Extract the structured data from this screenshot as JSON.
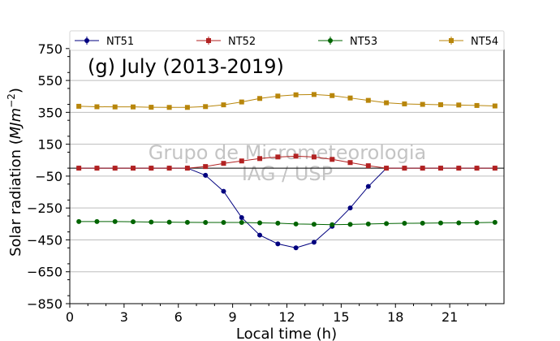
{
  "chart_data": {
    "type": "line",
    "annotation": "(g) July (2013-2019)",
    "watermark": [
      "Grupo de Micrometeorologia",
      "IAG / USP"
    ],
    "xlabel": "Local time (h)",
    "ylabel_main": "Solar radiation (",
    "ylabel_unit": "MJm",
    "ylabel_exp": "−2",
    "ylabel_close": ")",
    "xlim": [
      0,
      24
    ],
    "ylim": [
      -850,
      800
    ],
    "xticks": [
      0,
      3,
      6,
      9,
      12,
      15,
      18,
      21
    ],
    "xtick_labels": [
      "0",
      "3",
      "6",
      "9",
      "12",
      "15",
      "18",
      "21"
    ],
    "yticks": [
      -850,
      -650,
      -450,
      -250,
      -50,
      150,
      350,
      550,
      750
    ],
    "ytick_labels": [
      "−850",
      "−650",
      "−450",
      "−250",
      "−50",
      "150",
      "350",
      "550",
      "750"
    ],
    "grid": "horizontal",
    "legend_position": "top",
    "zero_line": 0,
    "x": [
      0.5,
      1.5,
      2.5,
      3.5,
      4.5,
      5.5,
      6.5,
      7.5,
      8.5,
      9.5,
      10.5,
      11.5,
      12.5,
      13.5,
      14.5,
      15.5,
      16.5,
      17.5,
      18.5,
      19.5,
      20.5,
      21.5,
      22.5,
      23.5
    ],
    "series": [
      {
        "name": "NT51",
        "color": "#00007f",
        "marker": "circle",
        "values": [
          0,
          0,
          0,
          0,
          0,
          0,
          0,
          -45,
          -145,
          -310,
          -420,
          -475,
          -500,
          -465,
          -365,
          -250,
          -115,
          0,
          0,
          0,
          0,
          0,
          0,
          0
        ]
      },
      {
        "name": "NT52",
        "color": "#b22222",
        "marker": "square",
        "values": [
          0,
          0,
          0,
          0,
          0,
          0,
          0,
          10,
          30,
          45,
          60,
          70,
          75,
          70,
          55,
          35,
          15,
          0,
          0,
          0,
          0,
          0,
          0,
          0
        ]
      },
      {
        "name": "NT53",
        "color": "#006400",
        "marker": "circle",
        "values": [
          -335,
          -335,
          -335,
          -336,
          -338,
          -339,
          -340,
          -341,
          -341,
          -341,
          -343,
          -345,
          -350,
          -352,
          -355,
          -353,
          -350,
          -348,
          -346,
          -345,
          -344,
          -343,
          -342,
          -340
        ]
      },
      {
        "name": "NT54",
        "color": "#b8860b",
        "marker": "square",
        "values": [
          388,
          385,
          384,
          384,
          382,
          381,
          381,
          386,
          397,
          415,
          437,
          452,
          460,
          462,
          455,
          440,
          425,
          410,
          403,
          400,
          398,
          396,
          393,
          390
        ]
      }
    ]
  }
}
